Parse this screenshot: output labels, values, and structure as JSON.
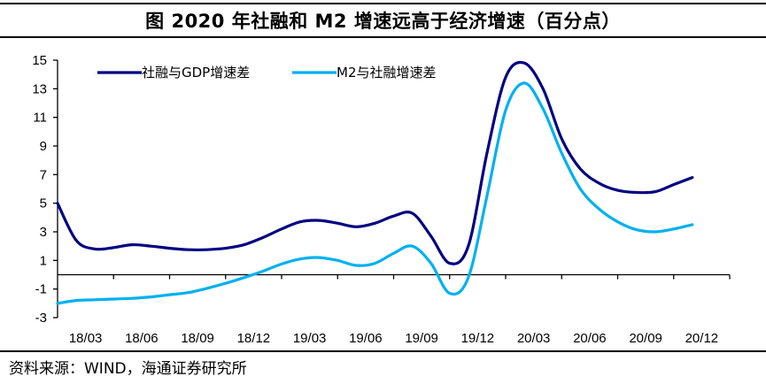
{
  "title": "图  2020 年社融和 M2 增速远高于经济增速（百分点）",
  "source": "资料来源：WIND，海通证券研究所",
  "chart_data": {
    "type": "line",
    "title": "2020 年社融和 M2 增速远高于经济增速（百分点）",
    "xlabel": "",
    "ylabel": "",
    "ylim": [
      -3,
      15
    ],
    "yticks": [
      15,
      13,
      11,
      9,
      7,
      5,
      3,
      1,
      -1,
      -3
    ],
    "xtick_labels": [
      "18/03",
      "18/06",
      "18/09",
      "18/12",
      "19/03",
      "19/06",
      "19/09",
      "19/12",
      "20/03",
      "20/06",
      "20/09",
      "20/12"
    ],
    "grid": false,
    "legend_position": "top-left",
    "x": [
      "2018-02",
      "2018-03",
      "2018-04",
      "2018-05",
      "2018-06",
      "2018-07",
      "2018-08",
      "2018-09",
      "2018-10",
      "2018-11",
      "2018-12",
      "2019-01",
      "2019-02",
      "2019-03",
      "2019-04",
      "2019-05",
      "2019-06",
      "2019-07",
      "2019-08",
      "2019-09",
      "2019-10",
      "2019-11",
      "2019-12",
      "2020-01",
      "2020-02",
      "2020-03",
      "2020-04",
      "2020-05",
      "2020-06",
      "2020-07",
      "2020-08",
      "2020-09",
      "2020-10",
      "2020-11",
      "2020-12"
    ],
    "series": [
      {
        "name": "社融与GDP增速差",
        "color": "#000080",
        "values": [
          5.0,
          2.4,
          1.8,
          1.9,
          2.1,
          2.0,
          1.85,
          1.75,
          1.75,
          1.85,
          2.1,
          2.6,
          3.2,
          3.7,
          3.8,
          3.6,
          3.35,
          3.6,
          4.1,
          4.3,
          2.7,
          0.8,
          2.0,
          8.5,
          13.8,
          14.8,
          13.0,
          9.5,
          7.4,
          6.4,
          5.9,
          5.75,
          5.8,
          6.3,
          6.8
        ]
      },
      {
        "name": "M2与社融增速差",
        "color": "#00B0F0",
        "values": [
          -2.0,
          -1.8,
          -1.75,
          -1.7,
          -1.65,
          -1.55,
          -1.4,
          -1.25,
          -0.95,
          -0.6,
          -0.2,
          0.25,
          0.75,
          1.1,
          1.2,
          1.0,
          0.65,
          0.8,
          1.5,
          2.0,
          0.8,
          -1.3,
          -0.2,
          5.5,
          11.5,
          13.4,
          11.6,
          8.5,
          6.0,
          4.6,
          3.7,
          3.15,
          3.0,
          3.2,
          3.5
        ]
      }
    ]
  }
}
